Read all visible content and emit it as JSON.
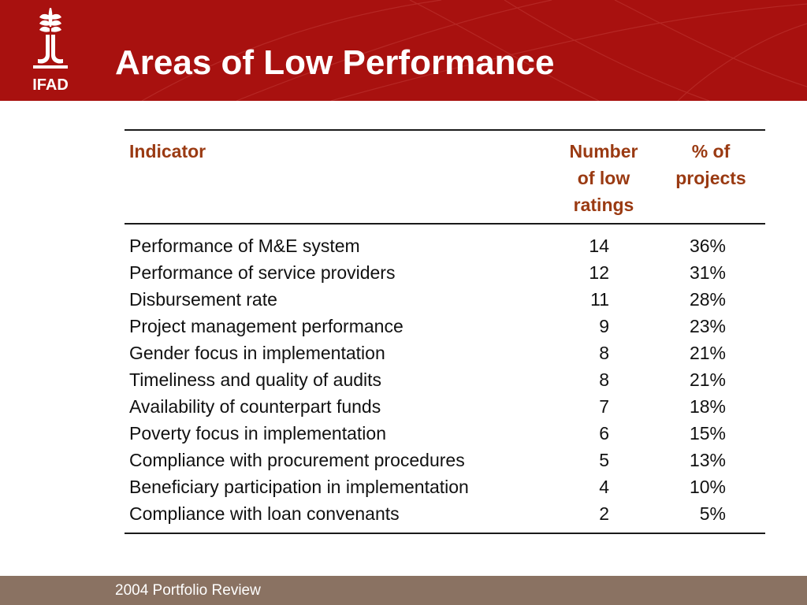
{
  "slide": {
    "title": "Areas of Low Performance",
    "logo_text": "IFAD",
    "footer": "2004 Portfolio Review"
  },
  "table": {
    "headers": {
      "indicator": "Indicator",
      "number_line1": "Number",
      "number_line2": "of low",
      "number_line3": "ratings",
      "pct_line1": "% of",
      "pct_line2": "projects"
    },
    "rows": [
      {
        "indicator": "Performance of M&E system",
        "number": "14",
        "percent": "36%"
      },
      {
        "indicator": "Performance of service providers",
        "number": "12",
        "percent": "31%"
      },
      {
        "indicator": "Disbursement rate",
        "number": "11",
        "percent": "28%"
      },
      {
        "indicator": "Project management performance",
        "number": "9",
        "percent": "23%"
      },
      {
        "indicator": "Gender focus in implementation",
        "number": "8",
        "percent": "21%"
      },
      {
        "indicator": "Timeliness and quality of audits",
        "number": "8",
        "percent": "21%"
      },
      {
        "indicator": "Availability of counterpart funds",
        "number": "7",
        "percent": "18%"
      },
      {
        "indicator": "Poverty focus in implementation",
        "number": "6",
        "percent": "15%"
      },
      {
        "indicator": "Compliance with procurement procedures",
        "number": "5",
        "percent": "13%"
      },
      {
        "indicator": "Beneficiary participation in implementation",
        "number": "4",
        "percent": "10%"
      },
      {
        "indicator": "Compliance with loan convenants",
        "number": "2",
        "percent": "5%"
      }
    ]
  },
  "colors": {
    "header_bg": "#a8110f",
    "header_text": "#9a3a12",
    "footer_bg": "#8a7262"
  }
}
